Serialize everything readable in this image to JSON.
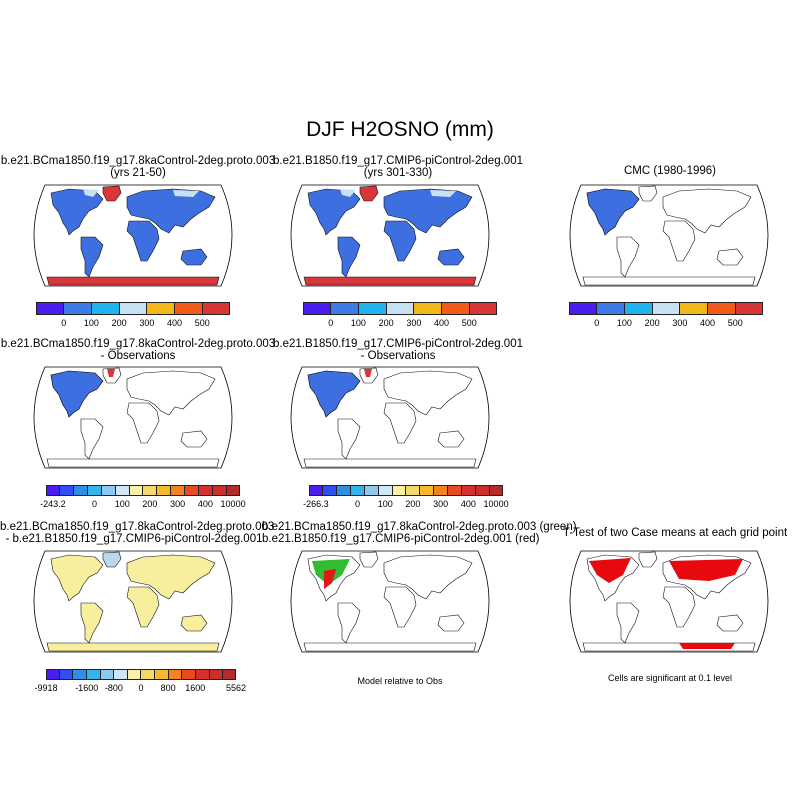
{
  "main_title": "DJF H2OSNO (mm)",
  "colors": {
    "level_scale": [
      "#4b1ef0",
      "#3d7be6",
      "#1fb4ec",
      "#c6e1f2",
      "#f2b81a",
      "#f05a1a",
      "#d83535"
    ],
    "diff_scale": [
      "#4b1ef0",
      "#2f4ff2",
      "#2f8fe6",
      "#34b4ec",
      "#8ec8ee",
      "#cfe6f4",
      "#fbf1a6",
      "#f4d96a",
      "#f6b82c",
      "#f28224",
      "#e84a22",
      "#d62f2f"
    ],
    "land_pos": "#3d6fe0",
    "land_diff": "#f7ee9e",
    "land_diff_blue": "#b9d7ef",
    "greenland_antarctica": "#d8363a",
    "model_green": "#1bb51b",
    "model_red": "#e01818",
    "ttest_red": "#e8090f"
  },
  "chart_data": [
    {
      "type": "map",
      "title_line1": "b.e21.BCma1850.f19_g17.8kaControl-2deg.proto.003",
      "title_line2": "(yrs 21-50)",
      "colorbar_ticks": [
        "0",
        "100",
        "200",
        "300",
        "400",
        "500"
      ]
    },
    {
      "type": "map",
      "title_line1": "b.e21.B1850.f19_g17.CMIP6-piControl-2deg.001",
      "title_line2": "(yrs 301-330)",
      "colorbar_ticks": [
        "0",
        "100",
        "200",
        "300",
        "400",
        "500"
      ]
    },
    {
      "type": "map",
      "title_line1": "CMC (1980-1996)",
      "title_line2": "",
      "colorbar_ticks": [
        "0",
        "100",
        "200",
        "300",
        "400",
        "500"
      ]
    },
    {
      "type": "map",
      "title_line1": "b.e21.BCma1850.f19_g17.8kaControl-2deg.proto.003",
      "title_line2": "- Observations",
      "colorbar_ticks": [
        "-243.2",
        "0",
        "100",
        "200",
        "300",
        "400",
        "10000"
      ]
    },
    {
      "type": "map",
      "title_line1": "b.e21.B1850.f19_g17.CMIP6-piControl-2deg.001",
      "title_line2": "- Observations",
      "colorbar_ticks": [
        "-266.3",
        "0",
        "100",
        "200",
        "300",
        "400",
        "10000"
      ]
    },
    {
      "type": "map",
      "title_line1": "b.e21.BCma1850.f19_g17.8kaControl-2deg.proto.003",
      "title_line2": "- b.e21.B1850.f19_g17.CMIP6-piControl-2deg.001",
      "colorbar_ticks": [
        "-9918",
        "-1600",
        "-800",
        "0",
        "800",
        "1600",
        "5562"
      ]
    },
    {
      "type": "map",
      "title_line1": "b.e21.BCma1850.f19_g17.8kaControl-2deg.proto.003 (green)",
      "title_line2": "b.e21.B1850.f19_g17.CMIP6-piControl-2deg.001 (red)",
      "caption": "Model relative to Obs"
    },
    {
      "type": "map",
      "title_line1": "T-Test of two Case means at each grid point",
      "title_line2": "",
      "caption": "Cells are significant at 0.1 level"
    }
  ]
}
